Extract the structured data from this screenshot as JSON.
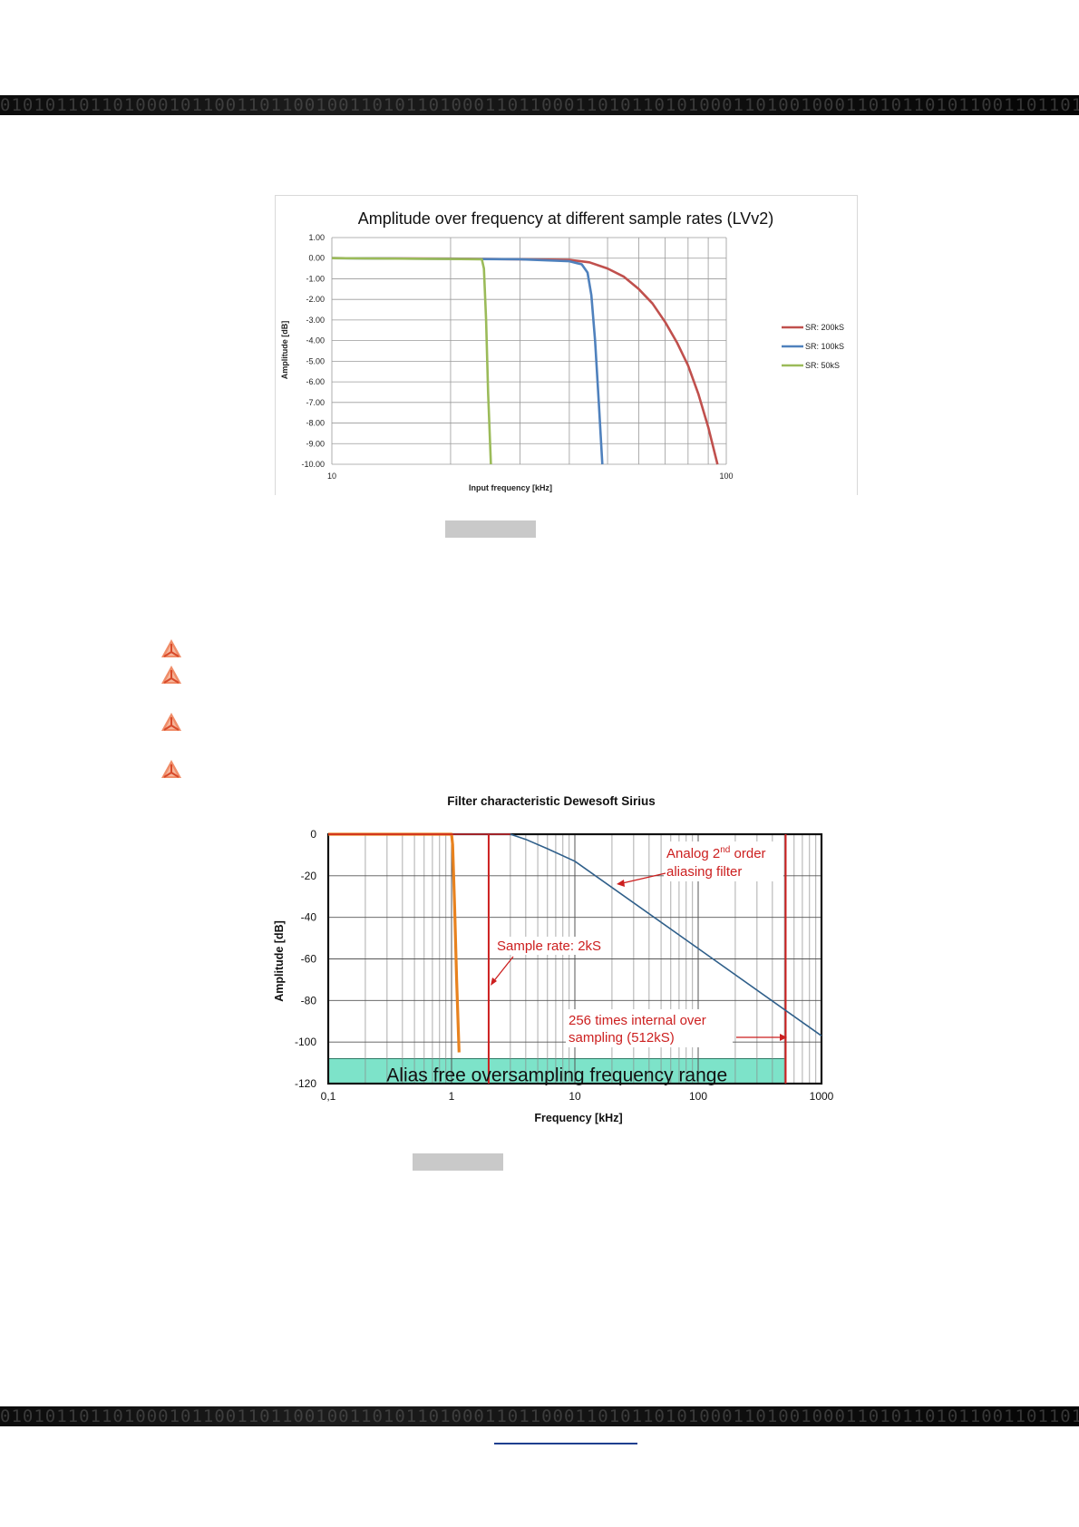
{
  "decor": {
    "binary_band": "010101101101000101100110110010011010110100011011000110101101010001101001000110101101011001101101010101"
  },
  "bullet_icon": "dewesoft-triangle-logo-icon",
  "figure1": {
    "chart_data": {
      "type": "line",
      "title": "Amplitude over frequency at different sample rates (LVv2)",
      "xlabel": "Input frequency [kHz]",
      "ylabel": "Amplitude [dB]",
      "x_scale": "log",
      "xlim": [
        10,
        100
      ],
      "ylim": [
        -10,
        1
      ],
      "x_ticks": [
        "10",
        "100"
      ],
      "y_ticks": [
        "1.00",
        "0.00",
        "-1.00",
        "-2.00",
        "-3.00",
        "-4.00",
        "-5.00",
        "-6.00",
        "-7.00",
        "-8.00",
        "-9.00",
        "-10.00"
      ],
      "grid": true,
      "legend_position": "right",
      "series": [
        {
          "name": "SR: 200kS",
          "color": "#c0504d",
          "points": [
            [
              10,
              0.0
            ],
            [
              20,
              -0.02
            ],
            [
              40,
              -0.08
            ],
            [
              45,
              -0.2
            ],
            [
              50,
              -0.5
            ],
            [
              55,
              -0.9
            ],
            [
              60,
              -1.5
            ],
            [
              65,
              -2.2
            ],
            [
              70,
              -3.1
            ],
            [
              75,
              -4.1
            ],
            [
              80,
              -5.2
            ],
            [
              85,
              -6.6
            ],
            [
              90,
              -8.2
            ],
            [
              95,
              -10.0
            ]
          ]
        },
        {
          "name": "SR: 100kS",
          "color": "#4f81bd",
          "points": [
            [
              10,
              0.0
            ],
            [
              30,
              -0.05
            ],
            [
              40,
              -0.15
            ],
            [
              43,
              -0.3
            ],
            [
              44.5,
              -0.7
            ],
            [
              45.5,
              -1.8
            ],
            [
              46.5,
              -4.0
            ],
            [
              47.5,
              -7.0
            ],
            [
              48.5,
              -10.0
            ]
          ]
        },
        {
          "name": "SR: 50kS",
          "color": "#9bbb59",
          "points": [
            [
              10,
              0.0
            ],
            [
              24,
              -0.05
            ],
            [
              24.3,
              -0.5
            ],
            [
              24.6,
              -3.0
            ],
            [
              24.9,
              -6.5
            ],
            [
              25.3,
              -10.0
            ]
          ]
        }
      ]
    }
  },
  "figure2": {
    "chart_data": {
      "type": "line",
      "title": "Filter characteristic Dewesoft Sirius",
      "xlabel": "Frequency [kHz]",
      "ylabel": "Amplitude [dB]",
      "x_scale": "log",
      "xlim": [
        0.1,
        1000
      ],
      "ylim": [
        -120,
        0
      ],
      "x_ticks": [
        "0,1",
        "1",
        "10",
        "100",
        "1000"
      ],
      "y_ticks": [
        "0",
        "-20",
        "-40",
        "-60",
        "-80",
        "-100",
        "-120"
      ],
      "grid": true,
      "series": [
        {
          "color": "#2f5f8a",
          "points": [
            [
              0.1,
              0.0
            ],
            [
              3.0,
              0.0
            ],
            [
              4.0,
              -2.5
            ],
            [
              6.0,
              -7.0
            ],
            [
              10.0,
              -13.0
            ],
            [
              100.0,
              -55.0
            ],
            [
              1000.0,
              -97.0
            ]
          ]
        },
        {
          "color": "#e8821e",
          "points": [
            [
              0.1,
              0.0
            ],
            [
              1.0,
              0.0
            ],
            [
              1.02,
              -5.0
            ],
            [
              1.06,
              -35.0
            ],
            [
              1.1,
              -70.0
            ],
            [
              1.15,
              -105.0
            ]
          ]
        }
      ],
      "vertical_lines": [
        2,
        512
      ],
      "band": {
        "from": 0.1,
        "to": 512,
        "y_from": -108,
        "y_to": -120,
        "label": "Alias free oversampling frequency range"
      },
      "annotations": {
        "analog_line1_a": "Analog 2",
        "analog_sup": "nd",
        "analog_line1_b": " order",
        "analog_line2": "aliasing  filter",
        "sample_rate": "Sample  rate: 2kS",
        "oversampling_line1": "256 times  internal  over",
        "oversampling_line2": "sampling  (512kS)"
      }
    }
  }
}
